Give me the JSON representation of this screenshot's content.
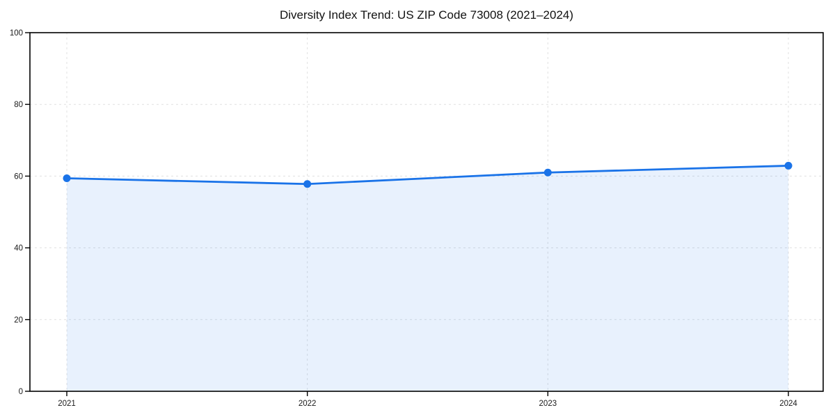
{
  "chart_data": {
    "type": "line",
    "title": "Diversity Index Trend: US ZIP Code 73008 (2021–2024)",
    "x": [
      "2021",
      "2022",
      "2023",
      "2024"
    ],
    "series": [
      {
        "name": "Diversity Index",
        "values": [
          59.4,
          57.8,
          61.0,
          62.9
        ]
      }
    ],
    "xlabel": "",
    "ylabel": "",
    "ylim": [
      0,
      100
    ],
    "yticks": [
      0,
      20,
      40,
      60,
      80,
      100
    ],
    "grid": true,
    "grid_style": "dashed",
    "legend": false,
    "marker": "circle",
    "colors": {
      "line": "#1a73e8",
      "marker": "#1a73e8",
      "area_fill": "rgba(26,115,232,0.10)",
      "grid": "#e0e0e0",
      "spine": "#000000",
      "title_text": "#111111",
      "tick_text": "#1a1a1a",
      "background": "#ffffff"
    }
  }
}
